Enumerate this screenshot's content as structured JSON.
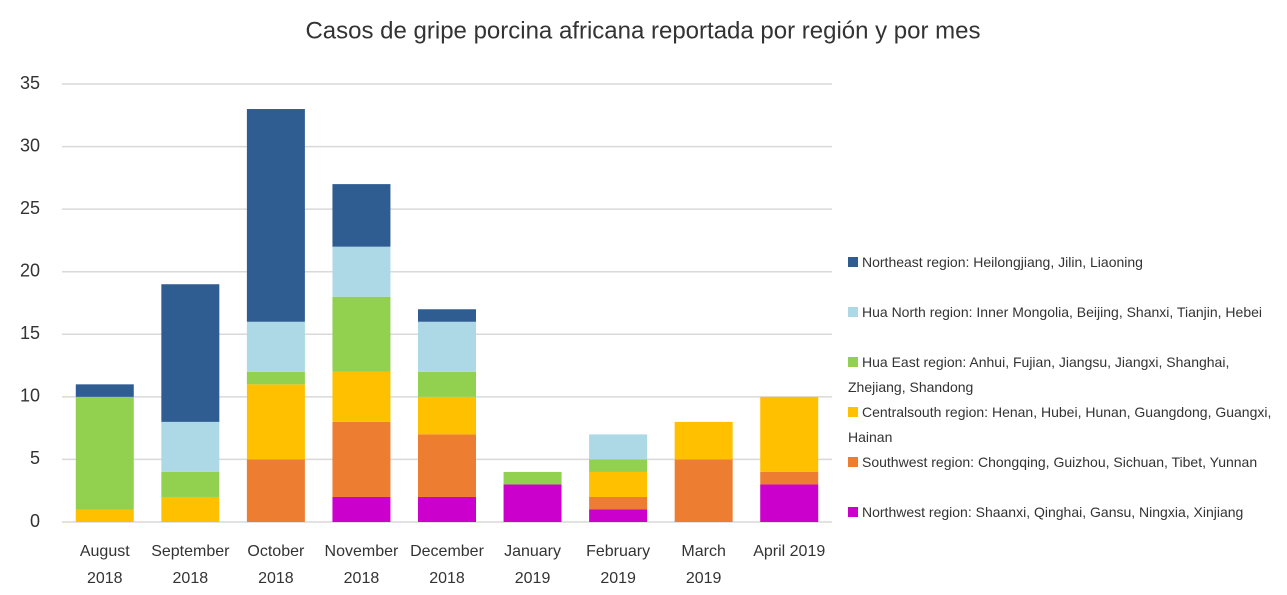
{
  "chart_data": {
    "type": "stacked_bar",
    "title": "Casos de gripe porcina africana reportada por región y por mes",
    "categories": [
      "August 2018",
      "September 2018",
      "October 2018",
      "November 2018",
      "December 2018",
      "January 2019",
      "February 2019",
      "March 2019",
      "April 2019"
    ],
    "series": [
      {
        "name": "Northwest region: Shaanxi, Qinghai, Gansu, Ningxia, Xinjiang",
        "color": "#cc00cc",
        "values": [
          0,
          0,
          0,
          2,
          2,
          3,
          1,
          0,
          3
        ]
      },
      {
        "name": "Southwest region: Chongqing, Guizhou, Sichuan, Tibet, Yunnan",
        "color": "#ed7d31",
        "values": [
          0,
          0,
          5,
          6,
          5,
          0,
          1,
          5,
          1
        ]
      },
      {
        "name": "Centralsouth region: Henan, Hubei, Hunan, Guangdong, Guangxi, Hainan",
        "color": "#ffc000",
        "values": [
          1,
          2,
          6,
          4,
          3,
          0,
          2,
          3,
          6
        ]
      },
      {
        "name": "Hua East region: Anhui, Fujian, Jiangsu, Jiangxi, Shanghai, Zhejiang, Shandong",
        "color": "#92d050",
        "values": [
          9,
          2,
          1,
          6,
          2,
          1,
          1,
          0,
          0
        ]
      },
      {
        "name": "Hua North region: Inner Mongolia, Beijing, Shanxi, Tianjin, Hebei",
        "color": "#add8e6",
        "values": [
          0,
          4,
          4,
          4,
          4,
          0,
          2,
          0,
          0
        ]
      },
      {
        "name": "Northeast region: Heilongjiang, Jilin, Liaoning",
        "color": "#2f5d91",
        "values": [
          1,
          11,
          17,
          5,
          1,
          0,
          0,
          0,
          0
        ]
      }
    ],
    "ylim": [
      0,
      35
    ],
    "yticks": [
      0,
      5,
      10,
      15,
      20,
      25,
      30,
      35
    ],
    "grid": true,
    "legend": "right"
  }
}
